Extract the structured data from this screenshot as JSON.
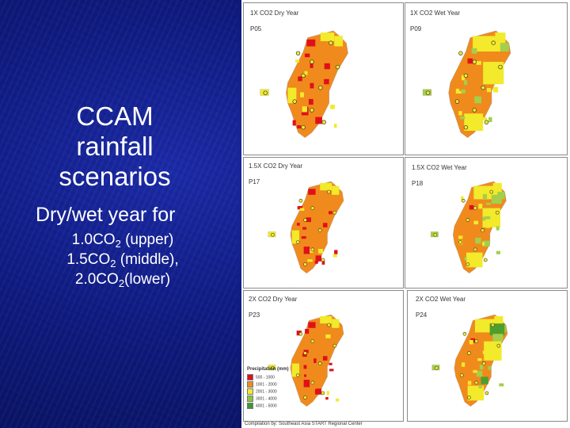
{
  "slide": {
    "title_lines": [
      "CCAM",
      "rainfall",
      "scenarios"
    ],
    "subtitle": "Dry/wet year for",
    "items": [
      {
        "prefix": "1.0CO",
        "sub": "2",
        "suffix": " (upper)"
      },
      {
        "prefix": "1.5CO",
        "sub": "2",
        "suffix": " (middle),"
      },
      {
        "prefix": "2.0CO",
        "sub": "2",
        "suffix": "(lower)"
      }
    ]
  },
  "panels": [
    {
      "label": "1X CO2 Dry Year",
      "code": "P05",
      "variant": "dry"
    },
    {
      "label": "1X CO2 Wet Year",
      "code": "P09",
      "variant": "wet"
    },
    {
      "label": "1.5X CO2 Dry Year",
      "code": "P17",
      "variant": "dry"
    },
    {
      "label": "1.5X CO2 Wet Year",
      "code": "P18",
      "variant": "wet"
    },
    {
      "label": "2X CO2 Dry Year",
      "code": "P23",
      "variant": "dry"
    },
    {
      "label": "2X CO2 Wet Year",
      "code": "P24",
      "variant": "wet"
    }
  ],
  "legend": {
    "title": "Precipitation (mm)",
    "entries": [
      {
        "label": "500 - 1000",
        "color": "#e0101a"
      },
      {
        "label": "1001 - 2000",
        "color": "#f08a1c"
      },
      {
        "label": "2001 - 3000",
        "color": "#f2ea2a"
      },
      {
        "label": "3001 - 4000",
        "color": "#8cc63f"
      },
      {
        "label": "4001 - 5000",
        "color": "#3c9a2c"
      }
    ]
  },
  "colors": {
    "red": "#e0101a",
    "orange": "#f08a1c",
    "yellow": "#f2ea2a",
    "lightgreen": "#a3cf4a",
    "green": "#4f9e2d"
  },
  "footer": "Compilation by: Southeast Asia START Regional Center"
}
